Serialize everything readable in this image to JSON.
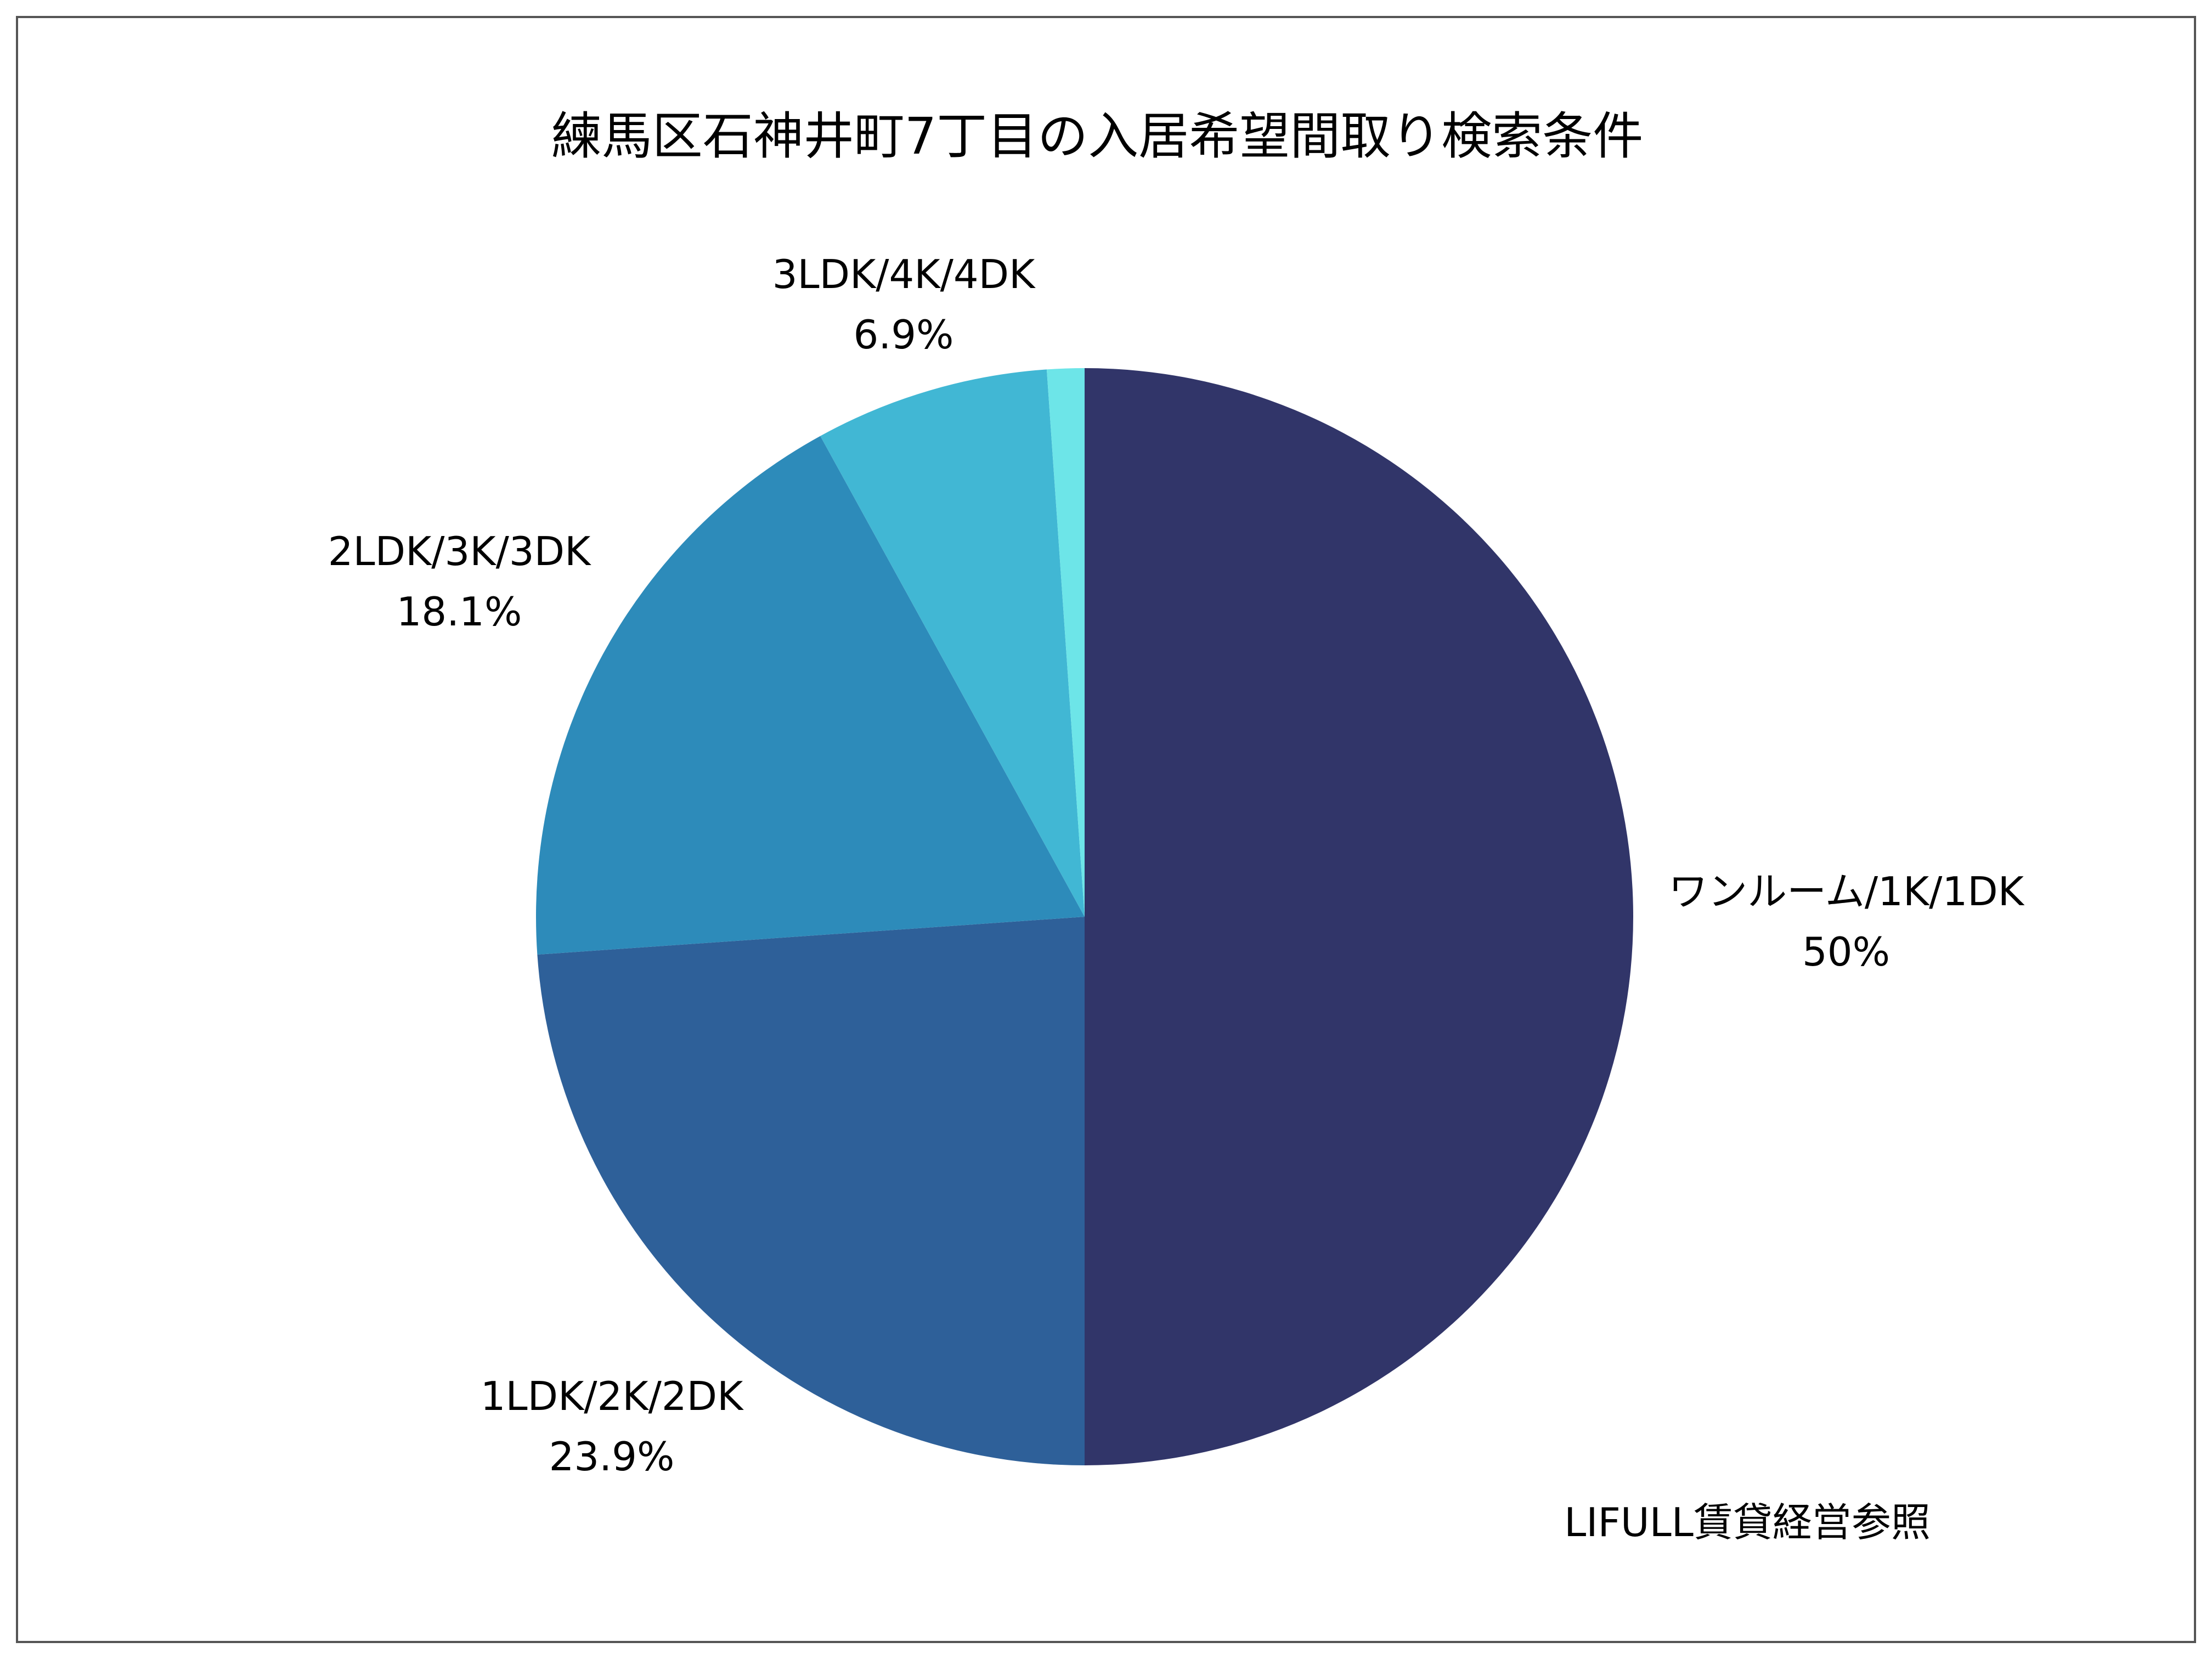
{
  "chart_data": {
    "type": "pie",
    "title": "練馬区石神井町7丁目の入居希望間取り検索条件",
    "start_angle": "top",
    "direction": "clockwise",
    "slices": [
      {
        "label": "ワンルーム/1K/1DK",
        "value": 50,
        "value_label": "50%",
        "color": "#313569"
      },
      {
        "label": "1LDK/2K/2DK",
        "value": 23.9,
        "value_label": "23.9%",
        "color": "#2e6099"
      },
      {
        "label": "2LDK/3K/3DK",
        "value": 18.1,
        "value_label": "18.1%",
        "color": "#2d8bba"
      },
      {
        "label": "3LDK/4K/4DK",
        "value": 6.9,
        "value_label": "6.9%",
        "color": "#41b7d4"
      },
      {
        "label": "",
        "value": 1.1,
        "value_label": "",
        "color": "#6de5e8"
      }
    ],
    "source_note": "LIFULL賃貸経営参照"
  }
}
